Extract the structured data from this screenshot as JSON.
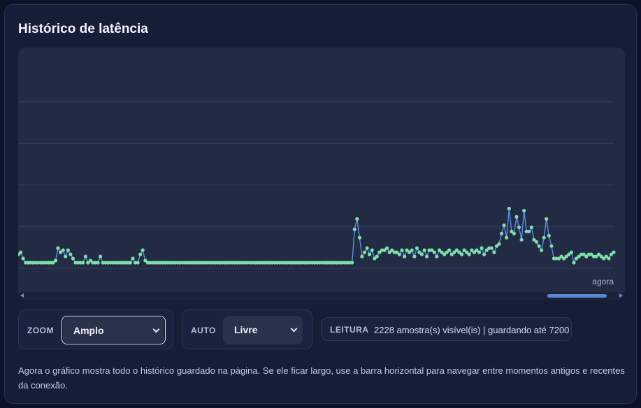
{
  "panel": {
    "title": "Histórico de latência",
    "now_label": "agora"
  },
  "chart_data": {
    "type": "line",
    "title": "Histórico de latência",
    "xlabel": "",
    "ylabel": "",
    "x_end_label": "agora",
    "grid": true,
    "ylim": [
      0,
      100
    ],
    "series": [
      {
        "values": [
          4,
          5,
          2,
          0,
          0,
          0,
          0,
          0,
          0,
          0,
          0,
          0,
          0,
          0,
          0,
          1,
          7,
          5,
          6,
          3,
          6,
          4,
          2,
          0,
          0,
          0,
          0,
          3,
          0,
          1,
          0,
          0,
          0,
          3,
          0,
          0,
          0,
          0,
          0,
          0,
          0,
          0,
          0,
          0,
          0,
          0,
          2,
          0,
          0,
          4,
          6,
          1,
          0,
          0,
          0,
          0,
          0,
          0,
          0,
          0,
          0,
          0,
          0,
          0,
          0,
          0,
          0,
          0,
          0,
          0,
          0,
          0,
          0,
          0,
          0,
          0,
          0,
          0,
          0,
          0,
          0,
          0,
          0,
          0,
          0,
          0,
          0,
          0,
          0,
          0,
          0,
          0,
          0,
          0,
          0,
          0,
          0,
          0,
          0,
          0,
          0,
          0,
          0,
          0,
          0,
          0,
          0,
          0,
          0,
          0,
          0,
          0,
          0,
          0,
          0,
          0,
          0,
          0,
          0,
          0,
          0,
          0,
          0,
          0,
          0,
          0,
          0,
          0,
          0,
          0,
          0,
          0,
          0,
          0,
          0,
          16,
          21,
          12,
          3,
          5,
          7,
          4,
          6,
          2,
          3,
          5,
          6,
          6,
          7,
          5,
          6,
          5,
          5,
          4,
          6,
          3,
          6,
          5,
          6,
          3,
          7,
          5,
          4,
          6,
          3,
          6,
          6,
          5,
          3,
          6,
          5,
          4,
          5,
          6,
          4,
          5,
          6,
          5,
          4,
          6,
          5,
          4,
          6,
          5,
          6,
          5,
          7,
          4,
          6,
          7,
          7,
          5,
          8,
          9,
          14,
          18,
          12,
          26,
          15,
          14,
          22,
          17,
          11,
          25,
          15,
          15,
          17,
          11,
          10,
          8,
          6,
          12,
          21,
          13,
          8,
          2,
          2,
          2,
          3,
          2,
          3,
          4,
          5,
          0,
          2,
          3,
          4,
          4,
          3,
          4,
          4,
          3,
          3,
          4,
          3,
          2,
          3,
          2,
          4,
          5
        ]
      }
    ]
  },
  "controls": {
    "zoom": {
      "label": "ZOOM",
      "value": "Amplo"
    },
    "auto": {
      "label": "AUTO",
      "value": "Livre"
    },
    "reading": {
      "label": "LEITURA",
      "value": "2228 amostra(s) visível(is) | guardando até 7200"
    }
  },
  "scroll": {
    "position": 0.98,
    "thumb_fraction": 0.1
  },
  "colors": {
    "line": "#5b8def",
    "point": "#7ee0a9",
    "grid": "#363e59",
    "accent": "#5b86d2"
  },
  "help_text": "Agora o gráfico mostra todo o histórico guardado na página. Se ele ficar largo, use a barra horizontal para navegar entre momentos antigos e recentes da conexão."
}
